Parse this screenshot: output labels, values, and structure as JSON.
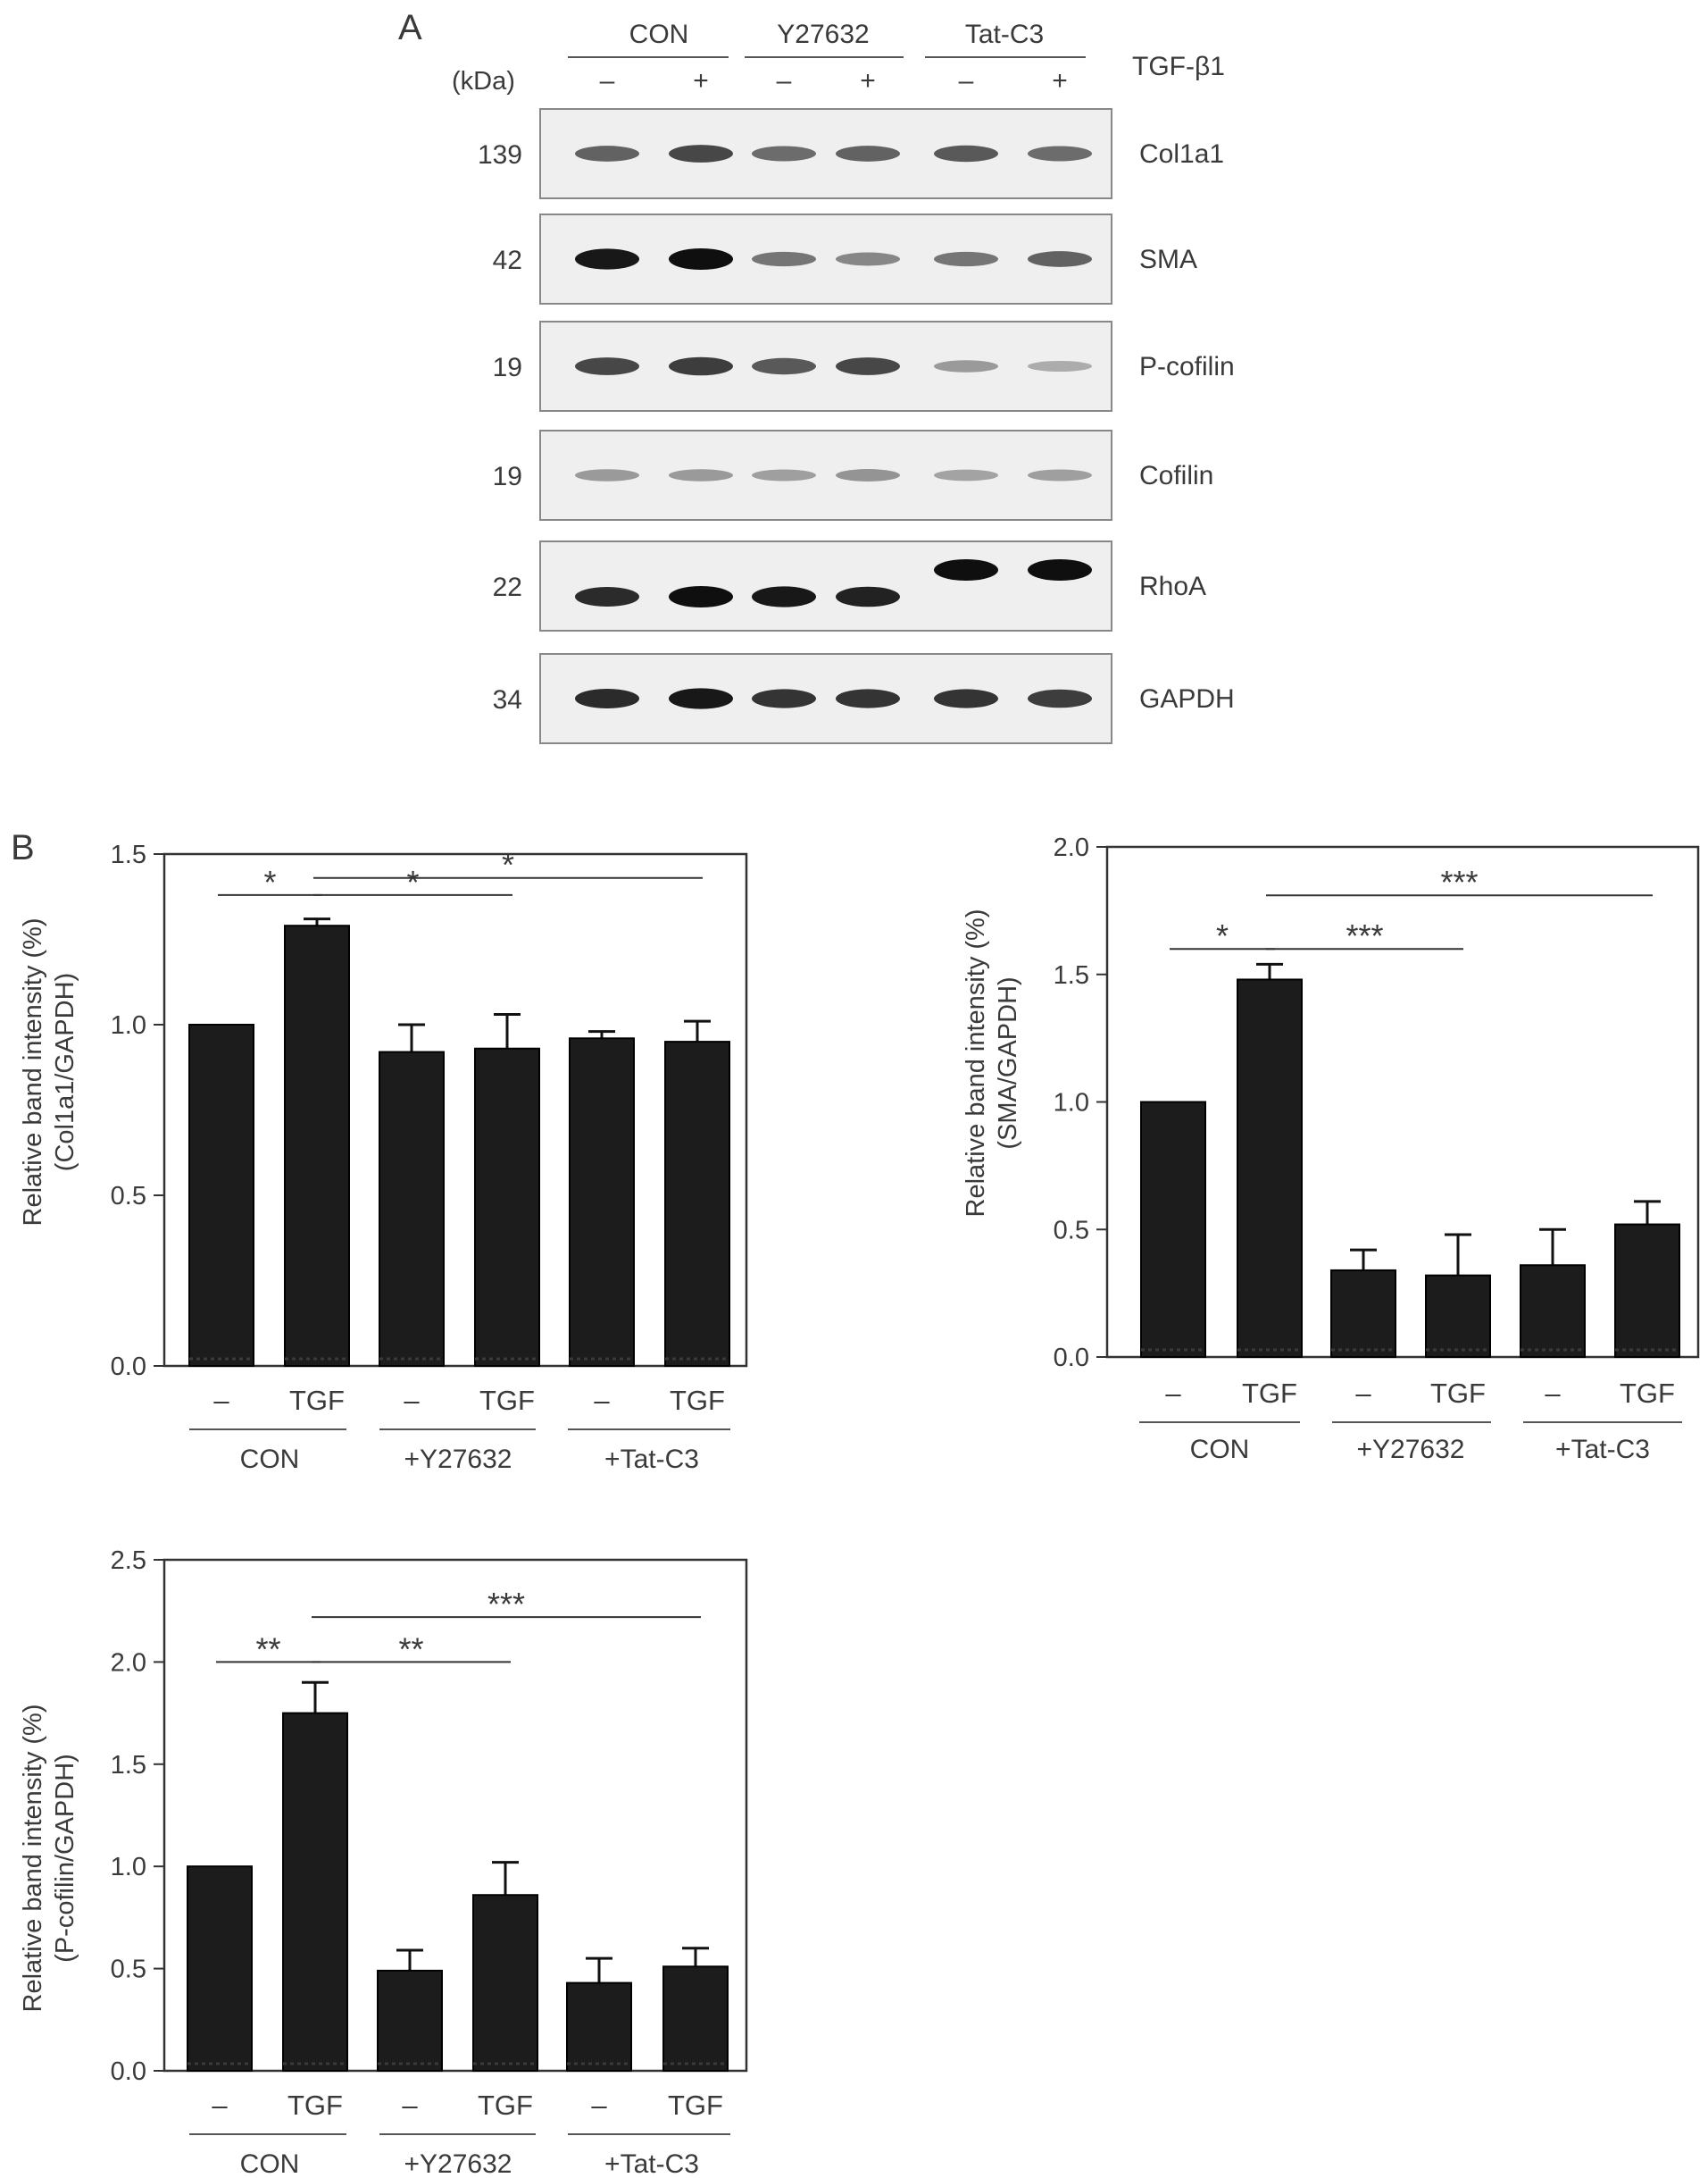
{
  "panelA": {
    "letter": "A",
    "kda_label": "(kDa)",
    "groups": [
      "CON",
      "Y27632",
      "Tat-C3"
    ],
    "treatment_label": "TGF-β1",
    "lane_signs": [
      "–",
      "+",
      "–",
      "+",
      "–",
      "+"
    ],
    "blots": [
      {
        "mw": "139",
        "name": "Col1a1",
        "intensity": [
          0.55,
          0.7,
          0.5,
          0.55,
          0.6,
          0.5
        ]
      },
      {
        "mw": "42",
        "name": "SMA",
        "intensity": [
          0.95,
          1.0,
          0.45,
          0.35,
          0.45,
          0.55
        ]
      },
      {
        "mw": "19",
        "name": "P-cofilin",
        "intensity": [
          0.7,
          0.75,
          0.6,
          0.7,
          0.25,
          0.15
        ]
      },
      {
        "mw": "19",
        "name": "Cofilin",
        "intensity": [
          0.25,
          0.25,
          0.22,
          0.28,
          0.2,
          0.22
        ]
      },
      {
        "mw": "22",
        "name": "RhoA",
        "intensity": [
          0.85,
          1.0,
          0.95,
          0.9,
          1.0,
          1.0
        ]
      },
      {
        "mw": "34",
        "name": "GAPDH",
        "intensity": [
          0.85,
          0.95,
          0.8,
          0.8,
          0.8,
          0.75
        ]
      }
    ]
  },
  "panelB": {
    "letter": "B"
  },
  "chart_data": [
    {
      "type": "bar",
      "title": "",
      "ylabel_line1": "Relative band intensity (%)",
      "ylabel_line2": "(Col1a1/GAPDH)",
      "ylim": [
        0,
        1.5
      ],
      "yticks": [
        "0.0",
        "0.5",
        "1.0",
        "1.5"
      ],
      "ytick_values": [
        0,
        0.5,
        1.0,
        1.5
      ],
      "categories": [
        "–",
        "TGF",
        "–",
        "TGF",
        "–",
        "TGF"
      ],
      "groups": [
        "CON",
        "+Y27632",
        "+Tat-C3"
      ],
      "values": [
        1.0,
        1.29,
        0.92,
        0.93,
        0.96,
        0.95
      ],
      "errors": [
        0,
        0.02,
        0.08,
        0.1,
        0.02,
        0.06
      ],
      "significance": [
        {
          "label": "*",
          "from": 0,
          "to": 1,
          "level": 1.38
        },
        {
          "label": "*",
          "from": 1,
          "to": 3,
          "level": 1.38
        },
        {
          "label": "*",
          "from": 1,
          "to": 5,
          "level": 1.43
        }
      ]
    },
    {
      "type": "bar",
      "title": "",
      "ylabel_line1": "Relative band intensity (%)",
      "ylabel_line2": "(SMA/GAPDH)",
      "ylim": [
        0,
        2.0
      ],
      "yticks": [
        "0.0",
        "0.5",
        "1.0",
        "1.5",
        "2.0"
      ],
      "ytick_values": [
        0,
        0.5,
        1.0,
        1.5,
        2.0
      ],
      "categories": [
        "–",
        "TGF",
        "–",
        "TGF",
        "–",
        "TGF"
      ],
      "groups": [
        "CON",
        "+Y27632",
        "+Tat-C3"
      ],
      "values": [
        1.0,
        1.48,
        0.34,
        0.32,
        0.36,
        0.52
      ],
      "errors": [
        0,
        0.06,
        0.08,
        0.16,
        0.14,
        0.09
      ],
      "significance": [
        {
          "label": "*",
          "from": 0,
          "to": 1,
          "level": 1.6
        },
        {
          "label": "***",
          "from": 1,
          "to": 3,
          "level": 1.6
        },
        {
          "label": "***",
          "from": 1,
          "to": 5,
          "level": 1.81
        }
      ]
    },
    {
      "type": "bar",
      "title": "",
      "ylabel_line1": "Relative band intensity (%)",
      "ylabel_line2": "(P-cofilin/GAPDH)",
      "ylim": [
        0,
        2.5
      ],
      "yticks": [
        "0.0",
        "0.5",
        "1.0",
        "1.5",
        "2.0",
        "2.5"
      ],
      "ytick_values": [
        0,
        0.5,
        1.0,
        1.5,
        2.0,
        2.5
      ],
      "categories": [
        "–",
        "TGF",
        "–",
        "TGF",
        "–",
        "TGF"
      ],
      "groups": [
        "CON",
        "+Y27632",
        "+Tat-C3"
      ],
      "values": [
        1.0,
        1.75,
        0.49,
        0.86,
        0.43,
        0.51
      ],
      "errors": [
        0,
        0.15,
        0.1,
        0.16,
        0.12,
        0.09
      ],
      "significance": [
        {
          "label": "**",
          "from": 0,
          "to": 1,
          "level": 2.0
        },
        {
          "label": "**",
          "from": 1,
          "to": 3,
          "level": 2.0
        },
        {
          "label": "***",
          "from": 1,
          "to": 5,
          "level": 2.22
        }
      ]
    }
  ]
}
